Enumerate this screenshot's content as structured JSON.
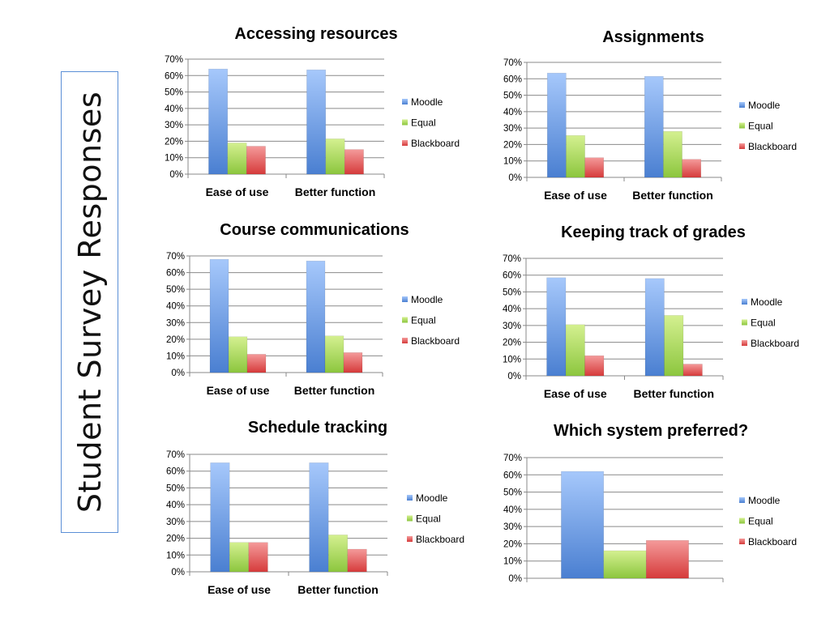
{
  "page": {
    "side_title": "Student Survey Responses"
  },
  "series_colors": {
    "Moodle": [
      "#4a7fd1",
      "#a6c8fb"
    ],
    "Equal": [
      "#8cc63e",
      "#d4f090"
    ],
    "Blackboard": [
      "#d63b3b",
      "#f49a9a"
    ]
  },
  "chart_data": [
    {
      "type": "bar",
      "title": "Accessing resources",
      "categories": [
        "Ease of use",
        "Better function"
      ],
      "ylim": [
        0,
        70
      ],
      "ytick_labels": [
        "0%",
        "10%",
        "20%",
        "30%",
        "40%",
        "50%",
        "60%",
        "70%"
      ],
      "grid": true,
      "legend_position": "right",
      "series": [
        {
          "name": "Moodle",
          "values": [
            64,
            63.5
          ]
        },
        {
          "name": "Equal",
          "values": [
            19,
            21.5
          ]
        },
        {
          "name": "Blackboard",
          "values": [
            17,
            15
          ]
        }
      ]
    },
    {
      "type": "bar",
      "title": "Assignments",
      "categories": [
        "Ease of use",
        "Better function"
      ],
      "ylim": [
        0,
        70
      ],
      "ytick_labels": [
        "0%",
        "10%",
        "20%",
        "30%",
        "40%",
        "50%",
        "60%",
        "70%"
      ],
      "grid": true,
      "legend_position": "right",
      "series": [
        {
          "name": "Moodle",
          "values": [
            63.5,
            61.5
          ]
        },
        {
          "name": "Equal",
          "values": [
            25.5,
            28
          ]
        },
        {
          "name": "Blackboard",
          "values": [
            12,
            11
          ]
        }
      ]
    },
    {
      "type": "bar",
      "title": "Course communications",
      "categories": [
        "Ease of use",
        "Better function"
      ],
      "ylim": [
        0,
        70
      ],
      "ytick_labels": [
        "0%",
        "10%",
        "20%",
        "30%",
        "40%",
        "50%",
        "60%",
        "70%"
      ],
      "grid": true,
      "legend_position": "right",
      "series": [
        {
          "name": "Moodle",
          "values": [
            68,
            67
          ]
        },
        {
          "name": "Equal",
          "values": [
            21.5,
            22
          ]
        },
        {
          "name": "Blackboard",
          "values": [
            11,
            12
          ]
        }
      ]
    },
    {
      "type": "bar",
      "title": "Keeping track of grades",
      "categories": [
        "Ease of use",
        "Better function"
      ],
      "ylim": [
        0,
        70
      ],
      "ytick_labels": [
        "0%",
        "10%",
        "20%",
        "30%",
        "40%",
        "50%",
        "60%",
        "70%"
      ],
      "grid": true,
      "legend_position": "right",
      "series": [
        {
          "name": "Moodle",
          "values": [
            58.5,
            58
          ]
        },
        {
          "name": "Equal",
          "values": [
            30.5,
            36
          ]
        },
        {
          "name": "Blackboard",
          "values": [
            12,
            7
          ]
        }
      ]
    },
    {
      "type": "bar",
      "title": "Schedule tracking",
      "categories": [
        "Ease of use",
        "Better function"
      ],
      "ylim": [
        0,
        70
      ],
      "ytick_labels": [
        "0%",
        "10%",
        "20%",
        "30%",
        "40%",
        "50%",
        "60%",
        "70%"
      ],
      "grid": true,
      "legend_position": "right",
      "series": [
        {
          "name": "Moodle",
          "values": [
            65,
            65
          ]
        },
        {
          "name": "Equal",
          "values": [
            17.5,
            22
          ]
        },
        {
          "name": "Blackboard",
          "values": [
            17.5,
            13.5
          ]
        }
      ]
    },
    {
      "type": "bar",
      "title": "Which system preferred?",
      "categories": [
        ""
      ],
      "ylim": [
        0,
        70
      ],
      "ytick_labels": [
        "0%",
        "10%",
        "20%",
        "30%",
        "40%",
        "50%",
        "60%",
        "70%"
      ],
      "grid": true,
      "legend_position": "right",
      "series": [
        {
          "name": "Moodle",
          "values": [
            62
          ]
        },
        {
          "name": "Equal",
          "values": [
            16
          ]
        },
        {
          "name": "Blackboard",
          "values": [
            22
          ]
        }
      ]
    }
  ]
}
